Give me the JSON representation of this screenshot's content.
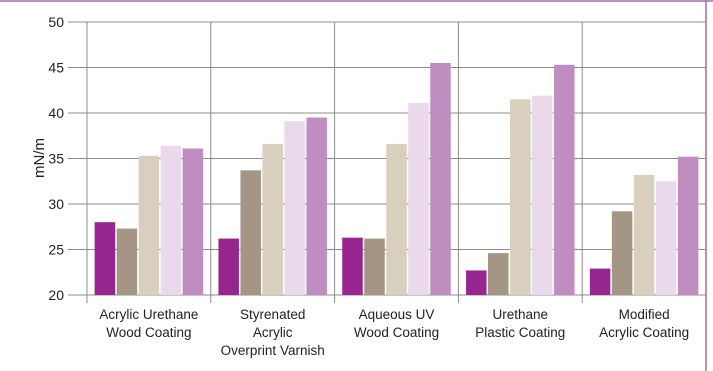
{
  "chart_data": {
    "type": "bar",
    "ylabel": "mN/m",
    "ylim": [
      20,
      50
    ],
    "yticks": [
      20,
      25,
      30,
      35,
      40,
      45,
      50
    ],
    "grid": true,
    "categories": [
      [
        "Acrylic Urethane",
        "Wood Coating"
      ],
      [
        "Styrenated",
        "Acrylic",
        "Overprint Varnish"
      ],
      [
        "Aqueous UV",
        "Wood Coating"
      ],
      [
        "Urethane",
        "Plastic Coating"
      ],
      [
        "Modified",
        "Acrylic Coating"
      ]
    ],
    "series_colors": [
      "#97258F",
      "#A49585",
      "#D9CFBE",
      "#EAD9EA",
      "#C08DC0"
    ],
    "series": [
      {
        "values": [
          28.0,
          26.2,
          26.3,
          22.7,
          22.9
        ]
      },
      {
        "values": [
          27.3,
          33.7,
          26.2,
          24.6,
          29.2
        ]
      },
      {
        "values": [
          35.3,
          36.6,
          36.6,
          41.5,
          33.2
        ]
      },
      {
        "values": [
          36.4,
          39.1,
          41.1,
          41.9,
          32.5
        ]
      },
      {
        "values": [
          36.1,
          39.5,
          45.5,
          45.3,
          35.2
        ]
      }
    ],
    "frame_color": "#A86CA8",
    "grid_color": "#8C8C8C"
  }
}
